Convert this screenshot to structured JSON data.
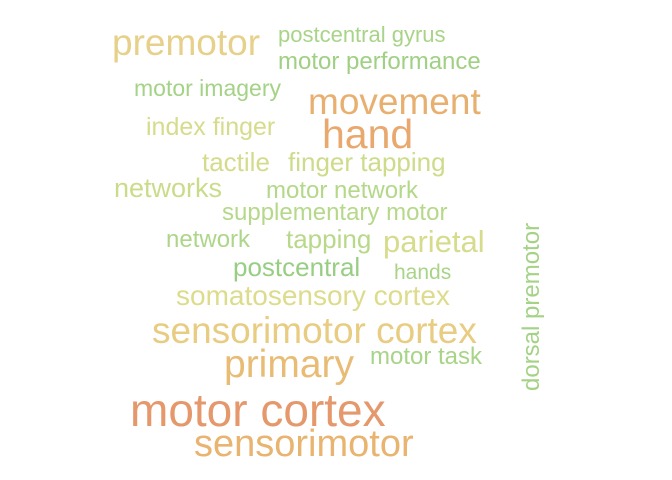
{
  "words": [
    {
      "text": "motor cortex",
      "color": "#e4986c"
    },
    {
      "text": "sensorimotor",
      "color": "#e8b470"
    },
    {
      "text": "hand",
      "color": "#e8a86e"
    },
    {
      "text": "movement",
      "color": "#e8b070"
    },
    {
      "text": "sensorimotor cortex",
      "color": "#e8cc82"
    },
    {
      "text": "primary",
      "color": "#e8bc74"
    },
    {
      "text": "premotor",
      "color": "#e6d08a"
    },
    {
      "text": "parietal",
      "color": "#d6dc8c"
    },
    {
      "text": "somatosensory cortex",
      "color": "#dcdc8c"
    },
    {
      "text": "index finger",
      "color": "#d6dc8c"
    },
    {
      "text": "tactile",
      "color": "#d4dc8c"
    },
    {
      "text": "finger tapping",
      "color": "#ccdc8a"
    },
    {
      "text": "networks",
      "color": "#cadc8a"
    },
    {
      "text": "motor network",
      "color": "#b4d88a"
    },
    {
      "text": "supplementary motor",
      "color": "#b6d88a"
    },
    {
      "text": "network",
      "color": "#aed68a"
    },
    {
      "text": "tapping",
      "color": "#b8d88a"
    },
    {
      "text": "postcentral",
      "color": "#98ce84"
    },
    {
      "text": "hands",
      "color": "#a8d488"
    },
    {
      "text": "motor task",
      "color": "#a8d488"
    },
    {
      "text": "dorsal premotor",
      "color": "#a4d286"
    },
    {
      "text": "motor imagery",
      "color": "#a4d286"
    },
    {
      "text": "postcentral gyrus",
      "color": "#a8d488"
    },
    {
      "text": "motor performance",
      "color": "#a0d084"
    }
  ]
}
